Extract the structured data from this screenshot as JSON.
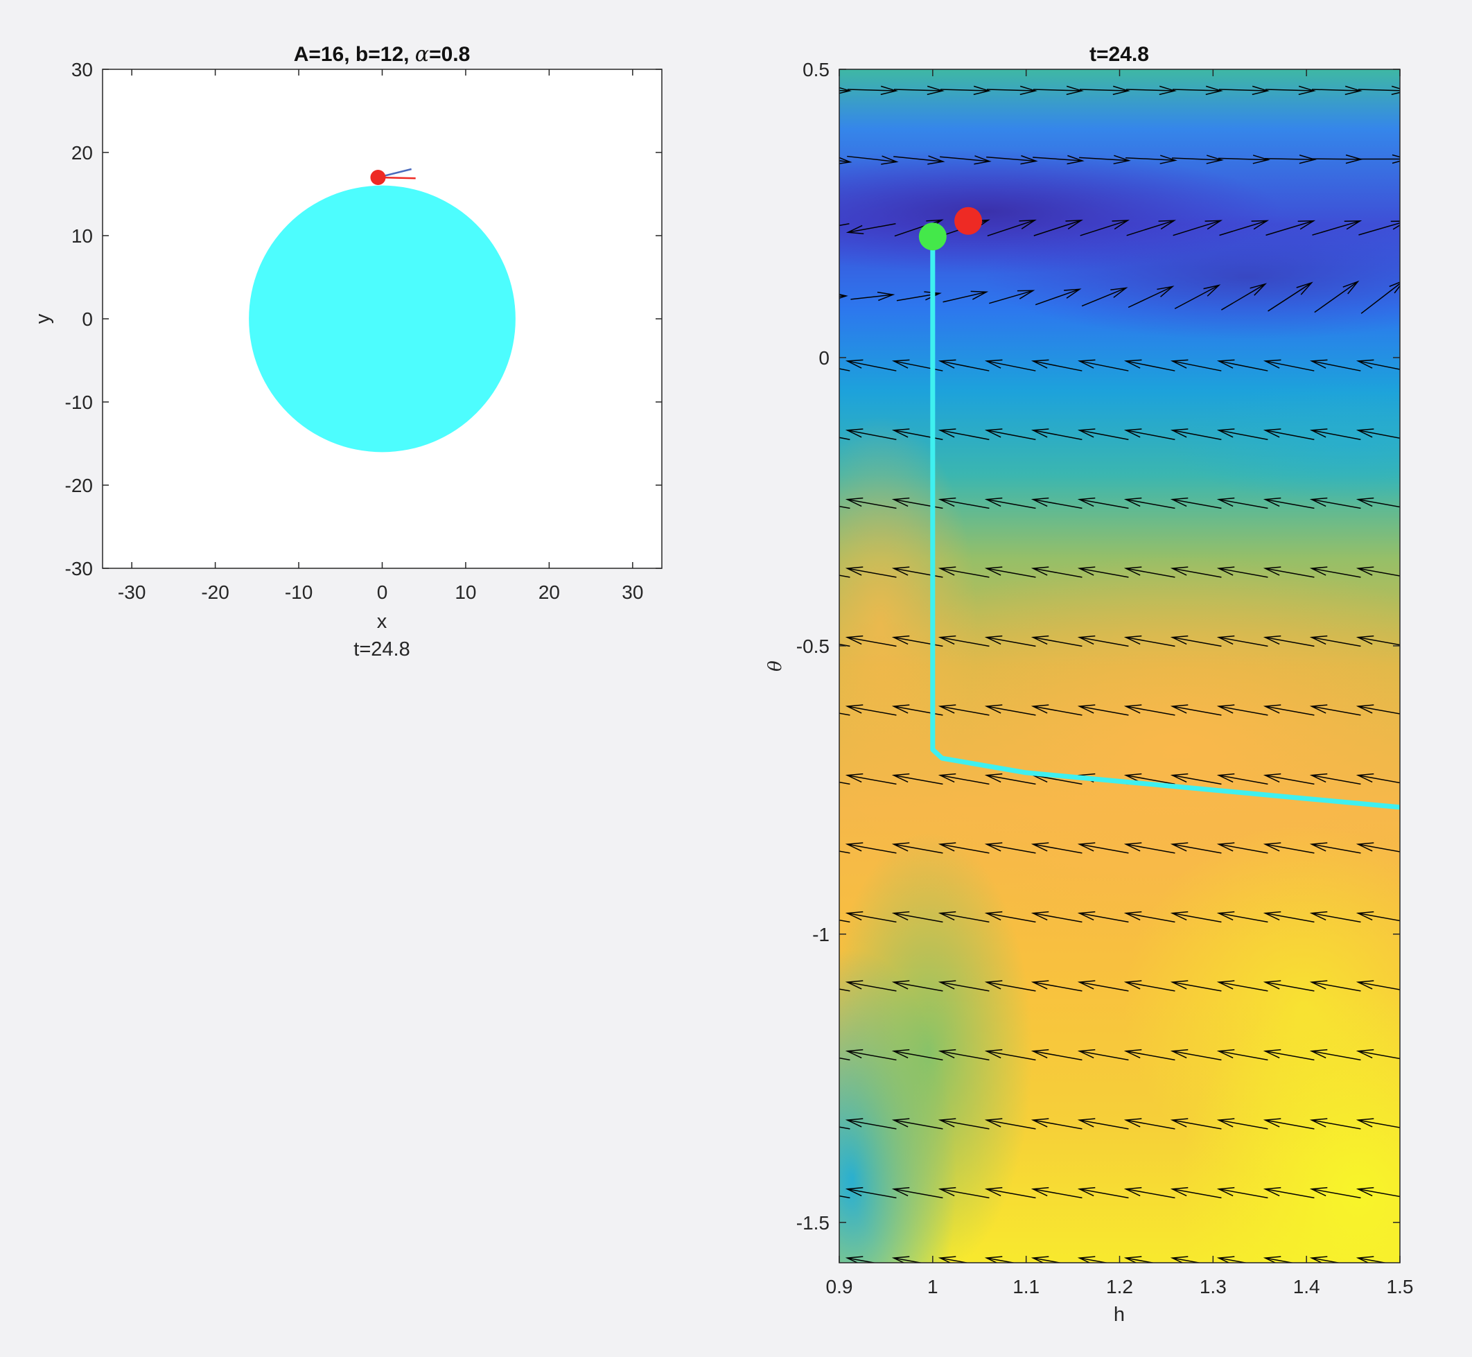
{
  "figure": {
    "background": "#f2f2f4"
  },
  "chart_data": [
    {
      "type": "scatter",
      "panel": "left",
      "title": {
        "prefix": "A=16,  b=12,  ",
        "alpha_symbol": "α",
        "suffix": "=0.8"
      },
      "xlabel": "x",
      "ylabel": "y",
      "caption": "t=24.8",
      "xlim": [
        -33.5,
        33.5
      ],
      "ylim": [
        -30,
        30
      ],
      "xticks": [
        -30,
        -20,
        -10,
        0,
        10,
        20,
        30
      ],
      "yticks": [
        -30,
        -20,
        -10,
        0,
        10,
        20,
        30
      ],
      "grid": false,
      "disc": {
        "center": [
          0,
          0
        ],
        "radius": 16,
        "color": "#4dfdfe"
      },
      "particle": {
        "x": -0.5,
        "y": 17,
        "color": "#ee2a24"
      },
      "vectors": [
        {
          "name": "",
          "from": [
            -0.5,
            17
          ],
          "to": [
            3.5,
            18
          ],
          "color": "#4a6bbd"
        },
        {
          "name": "",
          "from": [
            -0.5,
            17
          ],
          "to": [
            4,
            16.9
          ],
          "color": "#ee2a24"
        }
      ]
    },
    {
      "type": "heatmap",
      "panel": "right",
      "title": "t=24.8",
      "xlabel": "h",
      "ylabel": "θ",
      "xlim": [
        0.9,
        1.5
      ],
      "ylim": [
        -1.57,
        0.5
      ],
      "xticks": [
        0.9,
        1,
        1.1,
        1.2,
        1.3,
        1.4,
        1.5
      ],
      "yticks": [
        -1.5,
        -1,
        -0.5,
        0,
        0.5
      ],
      "grid": false,
      "colormap": "parula",
      "trajectory": {
        "color": "#3ff0f0",
        "points": [
          [
            1.0,
            0.21
          ],
          [
            1.0,
            -0.68
          ],
          [
            1.01,
            -0.695
          ],
          [
            1.1,
            -0.72
          ],
          [
            1.2,
            -0.735
          ],
          [
            1.3,
            -0.75
          ],
          [
            1.4,
            -0.765
          ],
          [
            1.5,
            -0.78
          ]
        ]
      },
      "markers": [
        {
          "name": "start",
          "h": 1.0,
          "theta": 0.21,
          "color": "#44e84a"
        },
        {
          "name": "current",
          "h": 1.038,
          "theta": 0.237,
          "color": "#ee2a24"
        }
      ]
    }
  ]
}
